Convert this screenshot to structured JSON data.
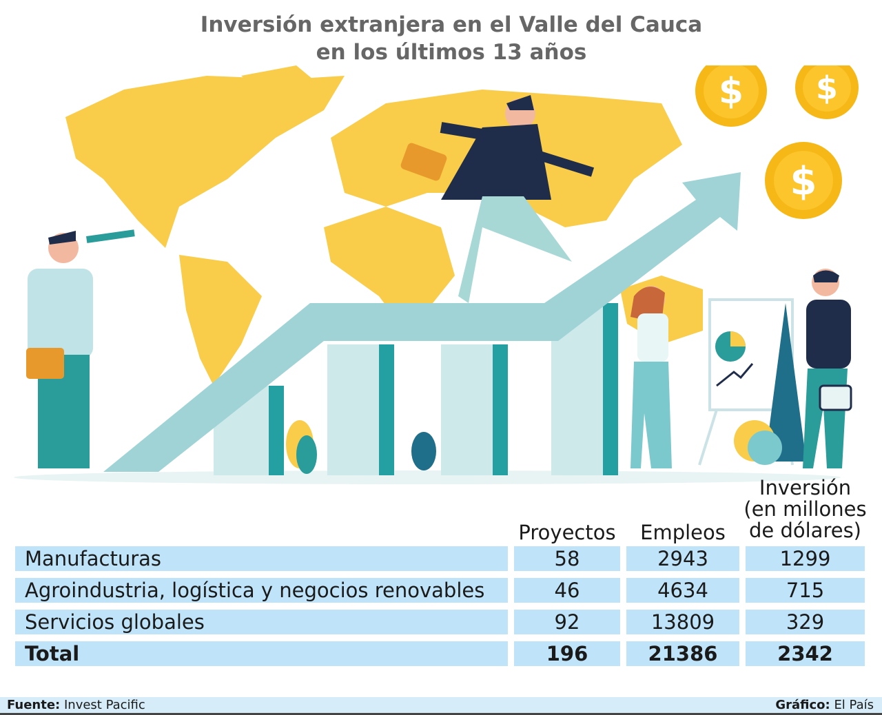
{
  "title": {
    "line1": "Inversión extranjera en el Valle del Cauca",
    "line2": "en los últimos 13 años"
  },
  "illustration": {
    "coin_symbol": "$",
    "colors": {
      "map": "#f9cc4a",
      "arrow": "#9fd3d6",
      "bar_dark": "#24a0a3",
      "coin": "#f6b817"
    }
  },
  "chart_data": {
    "type": "table",
    "columns": [
      "Proyectos",
      "Empleos",
      "Inversión (en millones de dólares)"
    ],
    "column_lines": [
      [
        "Proyectos"
      ],
      [
        "Empleos"
      ],
      [
        "Inversión",
        "(en millones",
        "de dólares)"
      ]
    ],
    "rows": [
      {
        "label": "Manufacturas",
        "values": [
          "58",
          "2943",
          "1299"
        ]
      },
      {
        "label": "Agroindustria, logística y negocios renovables",
        "values": [
          "46",
          "4634",
          "715"
        ]
      },
      {
        "label": "Servicios globales",
        "values": [
          "92",
          "13809",
          "329"
        ]
      },
      {
        "label": "Total",
        "values": [
          "196",
          "21386",
          "2342"
        ]
      }
    ],
    "row_color": "#bfe3f8"
  },
  "footer": {
    "source_label": "Fuente:",
    "source": "Invest Pacific",
    "credit_label": "Gráfico:",
    "credit": "El País"
  }
}
